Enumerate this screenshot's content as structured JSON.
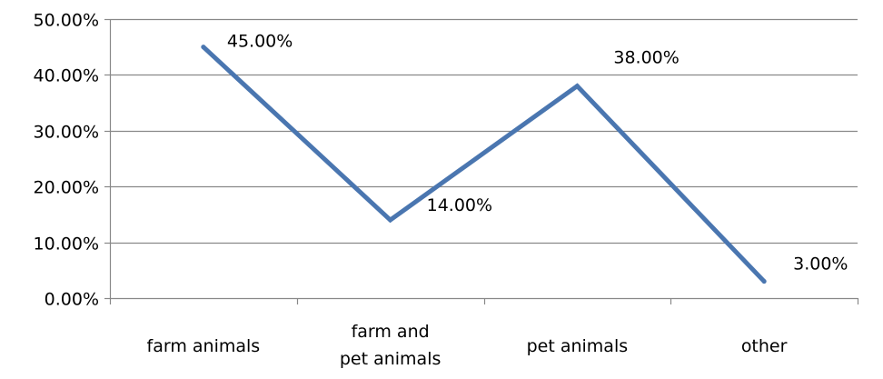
{
  "chart_data": {
    "type": "line",
    "categories": [
      "farm animals",
      "farm and\npet animals",
      "pet animals",
      "other"
    ],
    "series": [
      {
        "values": [
          45.0,
          14.0,
          38.0,
          3.0
        ],
        "color": "#4a76b0",
        "data_labels": [
          "45.00%",
          "14.00%",
          "38.00%",
          "3.00%"
        ]
      }
    ],
    "y_ticks": [
      0,
      10,
      20,
      30,
      40,
      50
    ],
    "y_tick_labels": [
      "0.00%",
      "10.00%",
      "20.00%",
      "30.00%",
      "40.00%",
      "50.00%"
    ],
    "ylim": [
      0,
      50
    ],
    "grid": true,
    "grid_color": "#888888",
    "axis_color": "#888888",
    "legend": "none"
  }
}
